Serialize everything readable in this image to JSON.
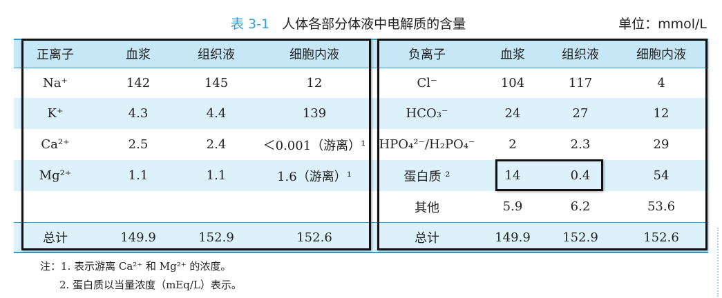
{
  "title": {
    "number": "表 3-1",
    "text": "人体各部分体液中电解质的含量",
    "unit": "单位：mmol/L"
  },
  "left_headers": [
    "正离子",
    "血浆",
    "组织液",
    "细胞内液"
  ],
  "right_headers": [
    "负离子",
    "血浆",
    "组织液",
    "细胞内液"
  ],
  "left_rows": [
    [
      "Na⁺",
      "142",
      "145",
      "12"
    ],
    [
      "K⁺",
      "4.3",
      "4.4",
      "139"
    ],
    [
      "Ca²⁺",
      "2.5",
      "2.4",
      "＜0.001（游离）¹"
    ],
    [
      "Mg²⁺",
      "1.1",
      "1.1",
      "1.6（游离）¹"
    ],
    [
      "",
      "",
      "",
      ""
    ],
    [
      "总计",
      "149.9",
      "152.9",
      "152.6"
    ]
  ],
  "right_rows": [
    [
      "Cl⁻",
      "104",
      "117",
      "4"
    ],
    [
      "HCO₃⁻",
      "24",
      "27",
      "12"
    ],
    [
      "HPO₄²⁻/H₂PO₄⁻",
      "2",
      "2.3",
      "29"
    ],
    [
      "蛋白质 ²",
      "14",
      "0.4",
      "54"
    ],
    [
      "其他",
      "5.9",
      "6.2",
      "53.6"
    ],
    [
      "总计",
      "149.9",
      "152.9",
      "152.6"
    ]
  ],
  "notes": [
    "注：1. 表示游离 Ca²⁺ 和 Mg²⁺ 的浓度。",
    "2. 蛋白质以当量浓度（mEq/L）表示。"
  ],
  "colors": {
    "accent": "#2a9fd6",
    "header_bg": "#c6e7f5",
    "stripe_bg": "#dcf1fa"
  }
}
